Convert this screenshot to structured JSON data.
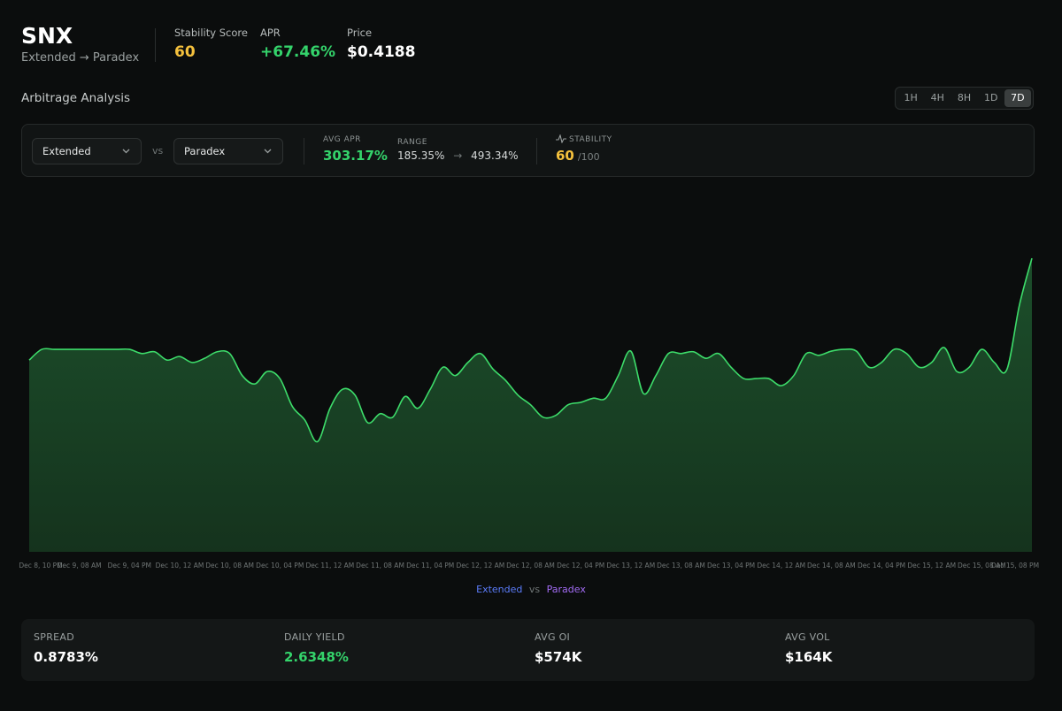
{
  "header": {
    "symbol": "SNX",
    "route": "Extended → Paradex",
    "metrics": [
      {
        "label": "Stability Score",
        "value": "60",
        "color": "#f5c13d"
      },
      {
        "label": "APR",
        "value": "+67.46%",
        "color": "#34d36b"
      },
      {
        "label": "Price",
        "value": "$0.4188",
        "color": "#ffffff"
      }
    ]
  },
  "section_title": "Arbitrage Analysis",
  "timeframes": [
    "1H",
    "4H",
    "8H",
    "1D",
    "7D"
  ],
  "active_timeframe": 4,
  "controls": {
    "exchange_a": "Extended",
    "vs": "vs",
    "exchange_b": "Paradex",
    "avg_apr_label": "AVG APR",
    "avg_apr": "303.17%",
    "range_label": "RANGE",
    "range_min": "185.35%",
    "range_arrow": "→",
    "range_max": "493.34%",
    "stability_label": "STABILITY",
    "stability": "60",
    "stability_max": "/100"
  },
  "chart_data": {
    "type": "area",
    "color": "#3ddc6a",
    "categories": [
      "Dec 8, 10 PM",
      null,
      null,
      null,
      "Dec 9, 08 AM",
      null,
      null,
      null,
      "Dec 9, 04 PM",
      null,
      null,
      null,
      "Dec 10, 12 AM",
      null,
      null,
      null,
      "Dec 10, 08 AM",
      null,
      null,
      null,
      "Dec 10, 04 PM",
      null,
      null,
      null,
      "Dec 11, 12 AM",
      null,
      null,
      null,
      "Dec 11, 08 AM",
      null,
      null,
      null,
      "Dec 11, 04 PM",
      null,
      null,
      null,
      "Dec 12, 12 AM",
      null,
      null,
      null,
      "Dec 12, 08 AM",
      null,
      null,
      null,
      "Dec 12, 04 PM",
      null,
      null,
      null,
      "Dec 13, 12 AM",
      null,
      null,
      null,
      "Dec 13, 08 AM",
      null,
      null,
      null,
      "Dec 13, 04 PM",
      null,
      null,
      null,
      "Dec 14, 12 AM",
      null,
      null,
      null,
      "Dec 14, 08 AM",
      null,
      null,
      null,
      "Dec 14, 04 PM",
      null,
      null,
      null,
      "Dec 15, 12 AM",
      null,
      null,
      null,
      "Dec 15, 08 AM",
      null,
      null,
      null,
      "Dec 15, 08 PM"
    ],
    "values": [
      322,
      340,
      340,
      340,
      340,
      340,
      340,
      340,
      340,
      333,
      336,
      322,
      328,
      318,
      325,
      336,
      333,
      296,
      282,
      303,
      291,
      244,
      221,
      185,
      241,
      273,
      263,
      217,
      232,
      226,
      261,
      241,
      273,
      310,
      296,
      318,
      333,
      307,
      288,
      263,
      247,
      226,
      229,
      247,
      251,
      258,
      258,
      296,
      337,
      266,
      296,
      333,
      333,
      336,
      325,
      333,
      310,
      291,
      291,
      291,
      279,
      296,
      333,
      330,
      337,
      340,
      337,
      310,
      318,
      340,
      333,
      310,
      318,
      343,
      303,
      310,
      340,
      318,
      306,
      414,
      493
    ],
    "ylim": [
      0,
      600
    ],
    "legend": {
      "left": "Extended",
      "left_color": "#5b7cfa",
      "middle": "vs",
      "right": "Paradex",
      "right_color": "#a36cf5"
    }
  },
  "stats": [
    {
      "label": "SPREAD",
      "value": "0.8783%",
      "color": "#ffffff"
    },
    {
      "label": "DAILY YIELD",
      "value": "2.6348%",
      "color": "#34d36b"
    },
    {
      "label": "AVG OI",
      "value": "$574K",
      "color": "#ffffff"
    },
    {
      "label": "AVG VOL",
      "value": "$164K",
      "color": "#ffffff"
    }
  ]
}
